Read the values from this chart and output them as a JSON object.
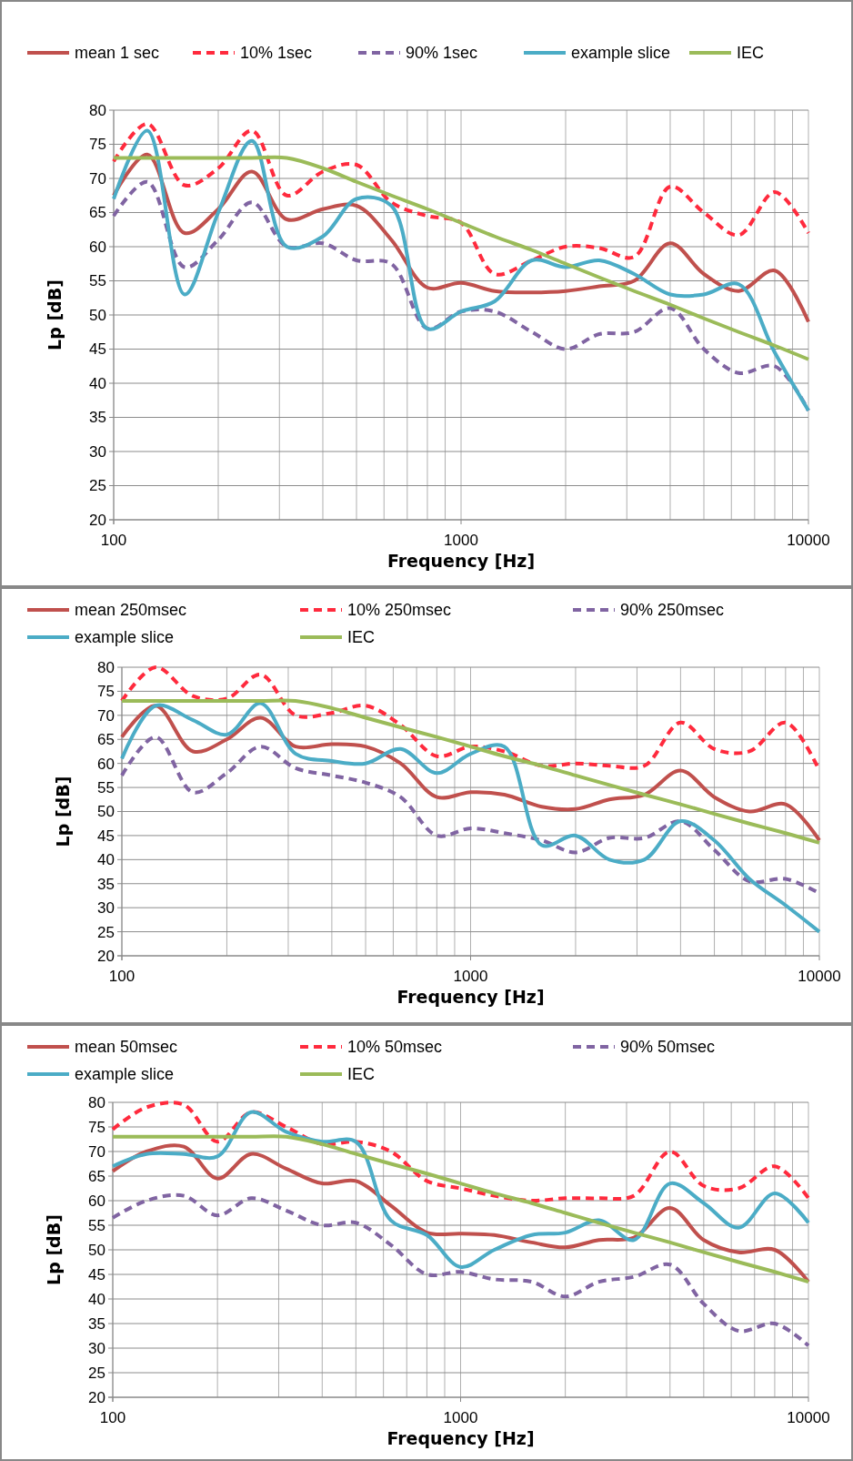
{
  "chart_data": [
    {
      "type": "line",
      "xlabel": "Frequency [Hz]",
      "ylabel": "Lp [dB]",
      "log": "x",
      "grid": true,
      "legend": "top",
      "xlim": [
        100,
        10000
      ],
      "xticks": [
        100,
        1000,
        10000
      ],
      "ylim": [
        20,
        80
      ],
      "yticks": [
        20,
        25,
        30,
        35,
        40,
        45,
        50,
        55,
        60,
        65,
        70,
        75,
        80
      ],
      "x": [
        100,
        125,
        160,
        200,
        250,
        315,
        400,
        500,
        630,
        800,
        1000,
        1250,
        1600,
        2000,
        2500,
        3150,
        4000,
        5000,
        6300,
        8000,
        10000
      ],
      "series": [
        {
          "name": "mean 1 sec",
          "color": "#c0504d",
          "line_style": "solid",
          "values": [
            67.5,
            73.5,
            62,
            65.5,
            71,
            64,
            65.5,
            66,
            61,
            54,
            54.7,
            53.5,
            53.3,
            53.5,
            54.2,
            55,
            60.5,
            56,
            53.5,
            56.5,
            49
          ]
        },
        {
          "name": "10% 1sec",
          "color": "#ff2a3d",
          "line_style": "dashed",
          "values": [
            72.5,
            78,
            69,
            71.5,
            77,
            67.5,
            71,
            72,
            66.5,
            64.5,
            63.5,
            56,
            58,
            60,
            59.8,
            58.5,
            68.8,
            65,
            61.7,
            68,
            62
          ]
        },
        {
          "name": "90% 1sec",
          "color": "#8064a2",
          "line_style": "dashed",
          "values": [
            64.5,
            69.5,
            57,
            61,
            66.5,
            60,
            60.5,
            58,
            57.5,
            48,
            50.5,
            50.5,
            47.5,
            45,
            47.2,
            47.5,
            51,
            45,
            41.5,
            42.5,
            36
          ]
        },
        {
          "name": "example slice",
          "color": "#4bacc6",
          "line_style": "solid",
          "values": [
            67,
            77,
            53,
            65,
            75.5,
            60,
            61.5,
            67,
            66,
            48,
            50.5,
            52,
            58,
            57,
            58,
            56,
            53,
            53,
            54.5,
            44.5,
            36
          ]
        },
        {
          "name": "IEC",
          "color": "#9bbb59",
          "line_style": "solid",
          "values": [
            73,
            73,
            73,
            73,
            73,
            73,
            71.5,
            69.5,
            67.5,
            65.5,
            63.5,
            61.5,
            59.5,
            57.5,
            55.5,
            53.5,
            51.5,
            49.5,
            47.5,
            45.5,
            43.5
          ]
        }
      ]
    },
    {
      "type": "line",
      "xlabel": "Frequency [Hz]",
      "ylabel": "Lp [dB]",
      "log": "x",
      "grid": true,
      "legend": "top",
      "xlim": [
        100,
        10000
      ],
      "xticks": [
        100,
        1000,
        10000
      ],
      "ylim": [
        20,
        80
      ],
      "yticks": [
        20,
        25,
        30,
        35,
        40,
        45,
        50,
        55,
        60,
        65,
        70,
        75,
        80
      ],
      "x": [
        100,
        125,
        160,
        200,
        250,
        315,
        400,
        500,
        630,
        800,
        1000,
        1250,
        1600,
        2000,
        2500,
        3150,
        4000,
        5000,
        6300,
        8000,
        10000
      ],
      "series": [
        {
          "name": "mean 250msec",
          "color": "#c0504d",
          "line_style": "solid",
          "values": [
            65.5,
            72,
            62.5,
            65,
            69.5,
            63.5,
            64,
            63.5,
            60,
            53,
            54,
            53.5,
            51,
            50.5,
            52.5,
            53.5,
            58.5,
            53,
            50,
            51.5,
            44
          ]
        },
        {
          "name": "10% 250msec",
          "color": "#ff2a3d",
          "line_style": "dashed",
          "values": [
            73,
            80,
            74,
            73.5,
            78.5,
            70,
            70.5,
            72,
            68,
            61.5,
            63.5,
            62.5,
            59.5,
            60,
            59.5,
            59.5,
            68.5,
            63,
            62.5,
            68.5,
            58.5
          ]
        },
        {
          "name": "90% 250msec",
          "color": "#8064a2",
          "line_style": "dashed",
          "values": [
            57.5,
            65.5,
            54,
            58,
            63.5,
            59,
            57.5,
            56,
            53,
            45,
            46.5,
            45.5,
            44,
            41.5,
            44.5,
            44.5,
            48,
            42,
            35.5,
            36,
            33
          ]
        },
        {
          "name": "example slice",
          "color": "#4bacc6",
          "line_style": "solid",
          "values": [
            61,
            72,
            69,
            66,
            72.5,
            62,
            60.5,
            60,
            63,
            58,
            62,
            63.5,
            43,
            45,
            40,
            40,
            48,
            44,
            36,
            30.5,
            25
          ]
        },
        {
          "name": "IEC",
          "color": "#9bbb59",
          "line_style": "solid",
          "values": [
            73,
            73,
            73,
            73,
            73,
            73,
            71.5,
            69.5,
            67.5,
            65.5,
            63.5,
            61.5,
            59.5,
            57.5,
            55.5,
            53.5,
            51.5,
            49.5,
            47.5,
            45.5,
            43.5
          ]
        }
      ]
    },
    {
      "type": "line",
      "xlabel": "Frequency [Hz]",
      "ylabel": "Lp [dB]",
      "log": "x",
      "grid": true,
      "legend": "top",
      "xlim": [
        100,
        10000
      ],
      "xticks": [
        100,
        1000,
        10000
      ],
      "ylim": [
        20,
        80
      ],
      "yticks": [
        20,
        25,
        30,
        35,
        40,
        45,
        50,
        55,
        60,
        65,
        70,
        75,
        80
      ],
      "x": [
        100,
        125,
        160,
        200,
        250,
        315,
        400,
        500,
        630,
        800,
        1000,
        1250,
        1600,
        2000,
        2500,
        3150,
        4000,
        5000,
        6300,
        8000,
        10000
      ],
      "series": [
        {
          "name": "mean 50msec",
          "color": "#c0504d",
          "line_style": "solid",
          "values": [
            66,
            70,
            71,
            64.5,
            69.5,
            66.5,
            63.5,
            64,
            59,
            53.5,
            53.3,
            53,
            51.5,
            50.5,
            52,
            52.5,
            58.5,
            52,
            49.5,
            50,
            43.5
          ]
        },
        {
          "name": "10% 50msec",
          "color": "#ff2a3d",
          "line_style": "dashed",
          "values": [
            74.5,
            79,
            79.5,
            72,
            78,
            75,
            71.5,
            72,
            70,
            64,
            62.5,
            61,
            60,
            60.5,
            60.5,
            61,
            70,
            63,
            62.5,
            67,
            60.5
          ]
        },
        {
          "name": "90% 50msec",
          "color": "#8064a2",
          "line_style": "dashed",
          "values": [
            56.5,
            60,
            61,
            57,
            60.5,
            58,
            55,
            55.5,
            51,
            45,
            45.5,
            44,
            43.5,
            40.5,
            43.5,
            44.5,
            47,
            39,
            33.5,
            35,
            30.5
          ]
        },
        {
          "name": "example slice",
          "color": "#4bacc6",
          "line_style": "solid",
          "values": [
            67,
            69.5,
            69.5,
            69,
            78,
            74,
            72,
            72,
            56,
            53,
            46.5,
            50,
            53,
            53.5,
            56,
            52,
            63.5,
            59.5,
            54.5,
            61.5,
            55.5
          ]
        },
        {
          "name": "IEC",
          "color": "#9bbb59",
          "line_style": "solid",
          "values": [
            73,
            73,
            73,
            73,
            73,
            73,
            71.5,
            69.5,
            67.5,
            65.5,
            63.5,
            61.5,
            59.5,
            57.5,
            55.5,
            53.5,
            51.5,
            49.5,
            47.5,
            45.5,
            43.5
          ]
        }
      ]
    }
  ]
}
